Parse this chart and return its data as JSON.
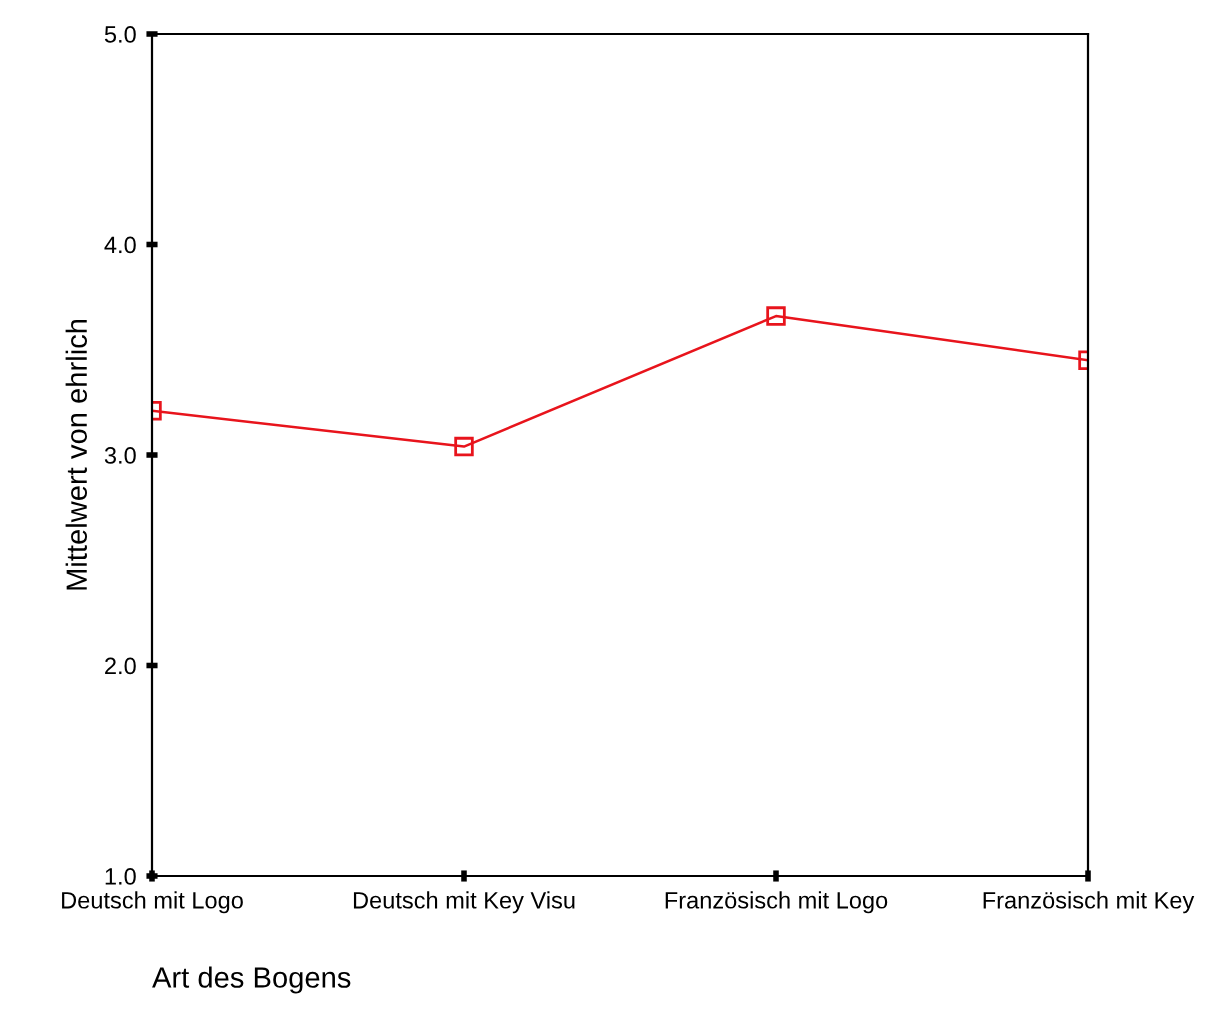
{
  "chart_data": {
    "type": "line",
    "xlabel": "Art des Bogens",
    "ylabel": "Mittelwert von ehrlich",
    "categories": [
      "Deutsch mit Logo",
      "Deutsch mit Key Visu",
      "Französisch mit Logo",
      "Französisch mit Key"
    ],
    "series": [
      {
        "color": "#e8141c",
        "values": [
          3.21,
          3.04,
          3.66,
          3.45
        ]
      }
    ],
    "ylim": [
      1.0,
      5.0
    ],
    "yticks": [
      {
        "value": 1,
        "label": "1.0"
      },
      {
        "value": 2,
        "label": "2.0"
      },
      {
        "value": 3,
        "label": "3.0"
      },
      {
        "value": 4,
        "label": "4.0"
      },
      {
        "value": 5,
        "label": "5.0"
      }
    ],
    "marker": "square",
    "line_style": "solid",
    "grid": false,
    "legend": false
  }
}
